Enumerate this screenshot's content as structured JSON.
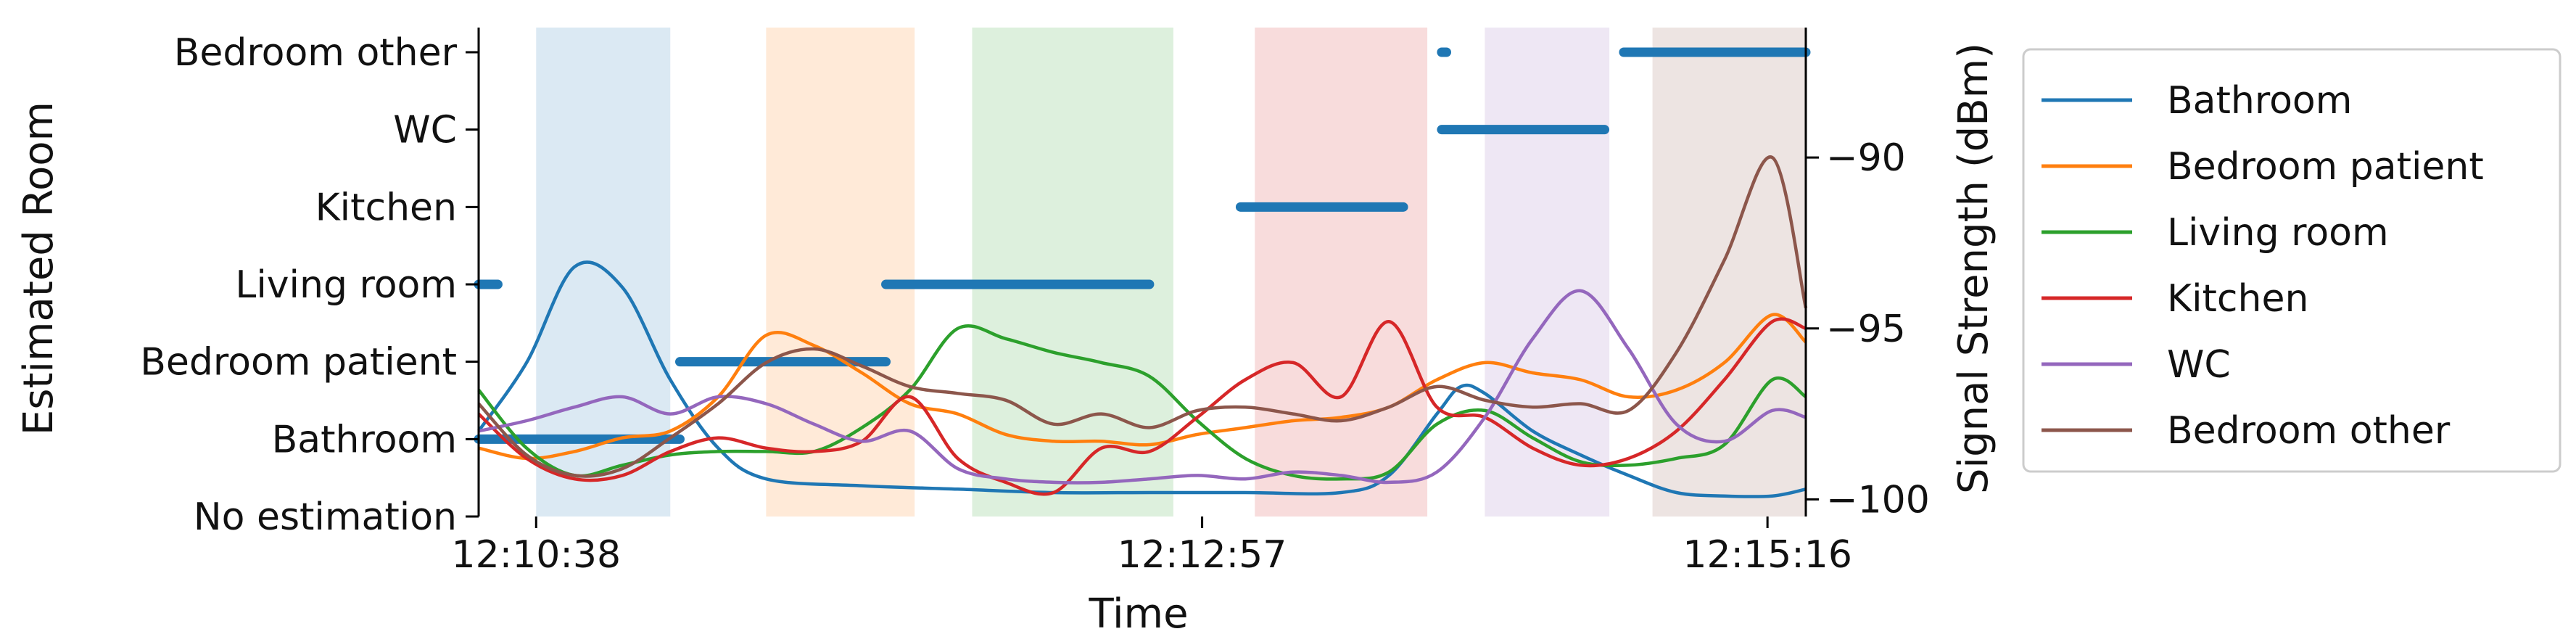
{
  "chart_data": {
    "type": "line",
    "xlabel": "Time",
    "ylabel_left": "Estimated Room",
    "ylabel_right": "Signal Strength (dBm)",
    "x_tick_labels": [
      "12:10:38",
      "12:12:57",
      "12:15:16"
    ],
    "x_range_seconds": [
      -20,
      257
    ],
    "room_levels": [
      "No estimation",
      "Bathroom",
      "Bedroom patient",
      "Living room",
      "Kitchen",
      "WC",
      "Bedroom other"
    ],
    "right_ylim": [
      -100.5,
      -86.2
    ],
    "right_ticks": [
      -90,
      -95,
      -100
    ],
    "right_tick_labels": [
      "−90",
      "−95",
      "−100"
    ],
    "colors": {
      "Bathroom": "#1f77b4",
      "Bedroom patient": "#ff7f0e",
      "Living room": "#2ca02c",
      "Kitchen": "#d62728",
      "WC": "#9467bd",
      "Bedroom other": "#8c564b"
    },
    "ground_truth_bands": [
      {
        "room": "Bathroom",
        "start": -8,
        "end": 20
      },
      {
        "room": "Bedroom patient",
        "start": 40,
        "end": 71
      },
      {
        "room": "Living room",
        "start": 83,
        "end": 125
      },
      {
        "room": "Kitchen",
        "start": 142,
        "end": 178
      },
      {
        "room": "WC",
        "start": 190,
        "end": 216
      },
      {
        "room": "Bedroom other",
        "start": 225,
        "end": 257
      }
    ],
    "estimation_segments": [
      {
        "room": "Living room",
        "start": -20,
        "end": -16
      },
      {
        "room": "Bathroom",
        "start": -20,
        "end": 22
      },
      {
        "room": "Bedroom patient",
        "start": 22,
        "end": 65
      },
      {
        "room": "Living room",
        "start": 65,
        "end": 120
      },
      {
        "room": "Kitchen",
        "start": 139,
        "end": 173
      },
      {
        "room": "Bedroom other",
        "start": 181,
        "end": 182
      },
      {
        "room": "WC",
        "start": 181,
        "end": 215
      },
      {
        "room": "Bedroom other",
        "start": 219,
        "end": 257
      }
    ],
    "series": [
      {
        "name": "Bathroom",
        "x": [
          -20,
          -10,
          0,
          10,
          20,
          30,
          40,
          60,
          80,
          100,
          120,
          140,
          160,
          170,
          180,
          185,
          190,
          200,
          210,
          220,
          230,
          240,
          250,
          257
        ],
        "y": [
          -98.0,
          -96.0,
          -93.2,
          -93.8,
          -96.5,
          -98.5,
          -99.4,
          -99.6,
          -99.7,
          -99.8,
          -99.8,
          -99.8,
          -99.8,
          -99.3,
          -97.5,
          -96.7,
          -96.9,
          -98.0,
          -98.7,
          -99.3,
          -99.8,
          -99.9,
          -99.9,
          -99.7
        ]
      },
      {
        "name": "Bedroom patient",
        "x": [
          -20,
          -10,
          0,
          10,
          20,
          30,
          40,
          50,
          60,
          70,
          80,
          90,
          100,
          110,
          120,
          130,
          140,
          150,
          160,
          170,
          180,
          190,
          200,
          210,
          220,
          230,
          240,
          250,
          257
        ],
        "y": [
          -98.5,
          -98.8,
          -98.6,
          -98.2,
          -98.0,
          -97.0,
          -95.2,
          -95.5,
          -96.3,
          -97.2,
          -97.5,
          -98.1,
          -98.3,
          -98.3,
          -98.4,
          -98.1,
          -97.9,
          -97.7,
          -97.6,
          -97.3,
          -96.5,
          -96.0,
          -96.3,
          -96.5,
          -97.0,
          -96.8,
          -96.0,
          -94.6,
          -95.4
        ]
      },
      {
        "name": "Living room",
        "x": [
          -20,
          -10,
          0,
          10,
          20,
          30,
          40,
          50,
          60,
          70,
          80,
          90,
          100,
          110,
          120,
          130,
          140,
          150,
          160,
          170,
          180,
          190,
          200,
          210,
          220,
          230,
          240,
          250,
          257
        ],
        "y": [
          -96.8,
          -98.5,
          -99.3,
          -99.0,
          -98.7,
          -98.6,
          -98.6,
          -98.6,
          -97.9,
          -96.8,
          -95.0,
          -95.3,
          -95.7,
          -96.0,
          -96.4,
          -97.7,
          -98.8,
          -99.3,
          -99.4,
          -99.2,
          -97.8,
          -97.4,
          -98.2,
          -98.9,
          -99.0,
          -98.8,
          -98.4,
          -96.5,
          -97.0
        ]
      },
      {
        "name": "Kitchen",
        "x": [
          -20,
          -10,
          0,
          10,
          20,
          30,
          40,
          50,
          60,
          70,
          80,
          90,
          100,
          110,
          120,
          130,
          140,
          150,
          160,
          170,
          180,
          190,
          200,
          210,
          220,
          230,
          240,
          250,
          257
        ],
        "y": [
          -97.5,
          -98.8,
          -99.4,
          -99.3,
          -98.6,
          -98.2,
          -98.5,
          -98.6,
          -98.3,
          -97.0,
          -98.8,
          -99.5,
          -99.8,
          -98.5,
          -98.6,
          -97.6,
          -96.5,
          -96.0,
          -97.0,
          -94.8,
          -97.3,
          -97.6,
          -98.5,
          -99.0,
          -98.8,
          -98.0,
          -96.5,
          -94.8,
          -95.0
        ]
      },
      {
        "name": "WC",
        "x": [
          -20,
          -10,
          0,
          10,
          20,
          30,
          40,
          50,
          60,
          70,
          80,
          90,
          100,
          110,
          120,
          130,
          140,
          150,
          160,
          170,
          180,
          190,
          200,
          210,
          220,
          230,
          240,
          250,
          257
        ],
        "y": [
          -98.0,
          -97.7,
          -97.3,
          -97.0,
          -97.5,
          -97.0,
          -97.2,
          -97.8,
          -98.3,
          -98.0,
          -99.1,
          -99.4,
          -99.5,
          -99.5,
          -99.4,
          -99.3,
          -99.4,
          -99.2,
          -99.3,
          -99.5,
          -99.2,
          -97.6,
          -95.3,
          -93.9,
          -95.6,
          -97.8,
          -98.3,
          -97.4,
          -97.6
        ]
      },
      {
        "name": "Bedroom other",
        "x": [
          -20,
          -10,
          0,
          10,
          20,
          30,
          40,
          50,
          60,
          70,
          80,
          90,
          100,
          110,
          120,
          130,
          140,
          150,
          160,
          170,
          180,
          190,
          200,
          210,
          220,
          230,
          240,
          250,
          257
        ],
        "y": [
          -97.2,
          -98.7,
          -99.3,
          -99.1,
          -98.2,
          -97.2,
          -96.0,
          -95.6,
          -96.1,
          -96.7,
          -96.9,
          -97.1,
          -97.8,
          -97.5,
          -97.9,
          -97.4,
          -97.3,
          -97.5,
          -97.7,
          -97.3,
          -96.7,
          -97.1,
          -97.3,
          -97.2,
          -97.4,
          -95.7,
          -93.0,
          -90.0,
          -94.4
        ]
      }
    ],
    "legend": {
      "placement": "right",
      "entries": [
        "Bathroom",
        "Bedroom patient",
        "Living room",
        "Kitchen",
        "WC",
        "Bedroom other"
      ]
    },
    "grid": false
  }
}
